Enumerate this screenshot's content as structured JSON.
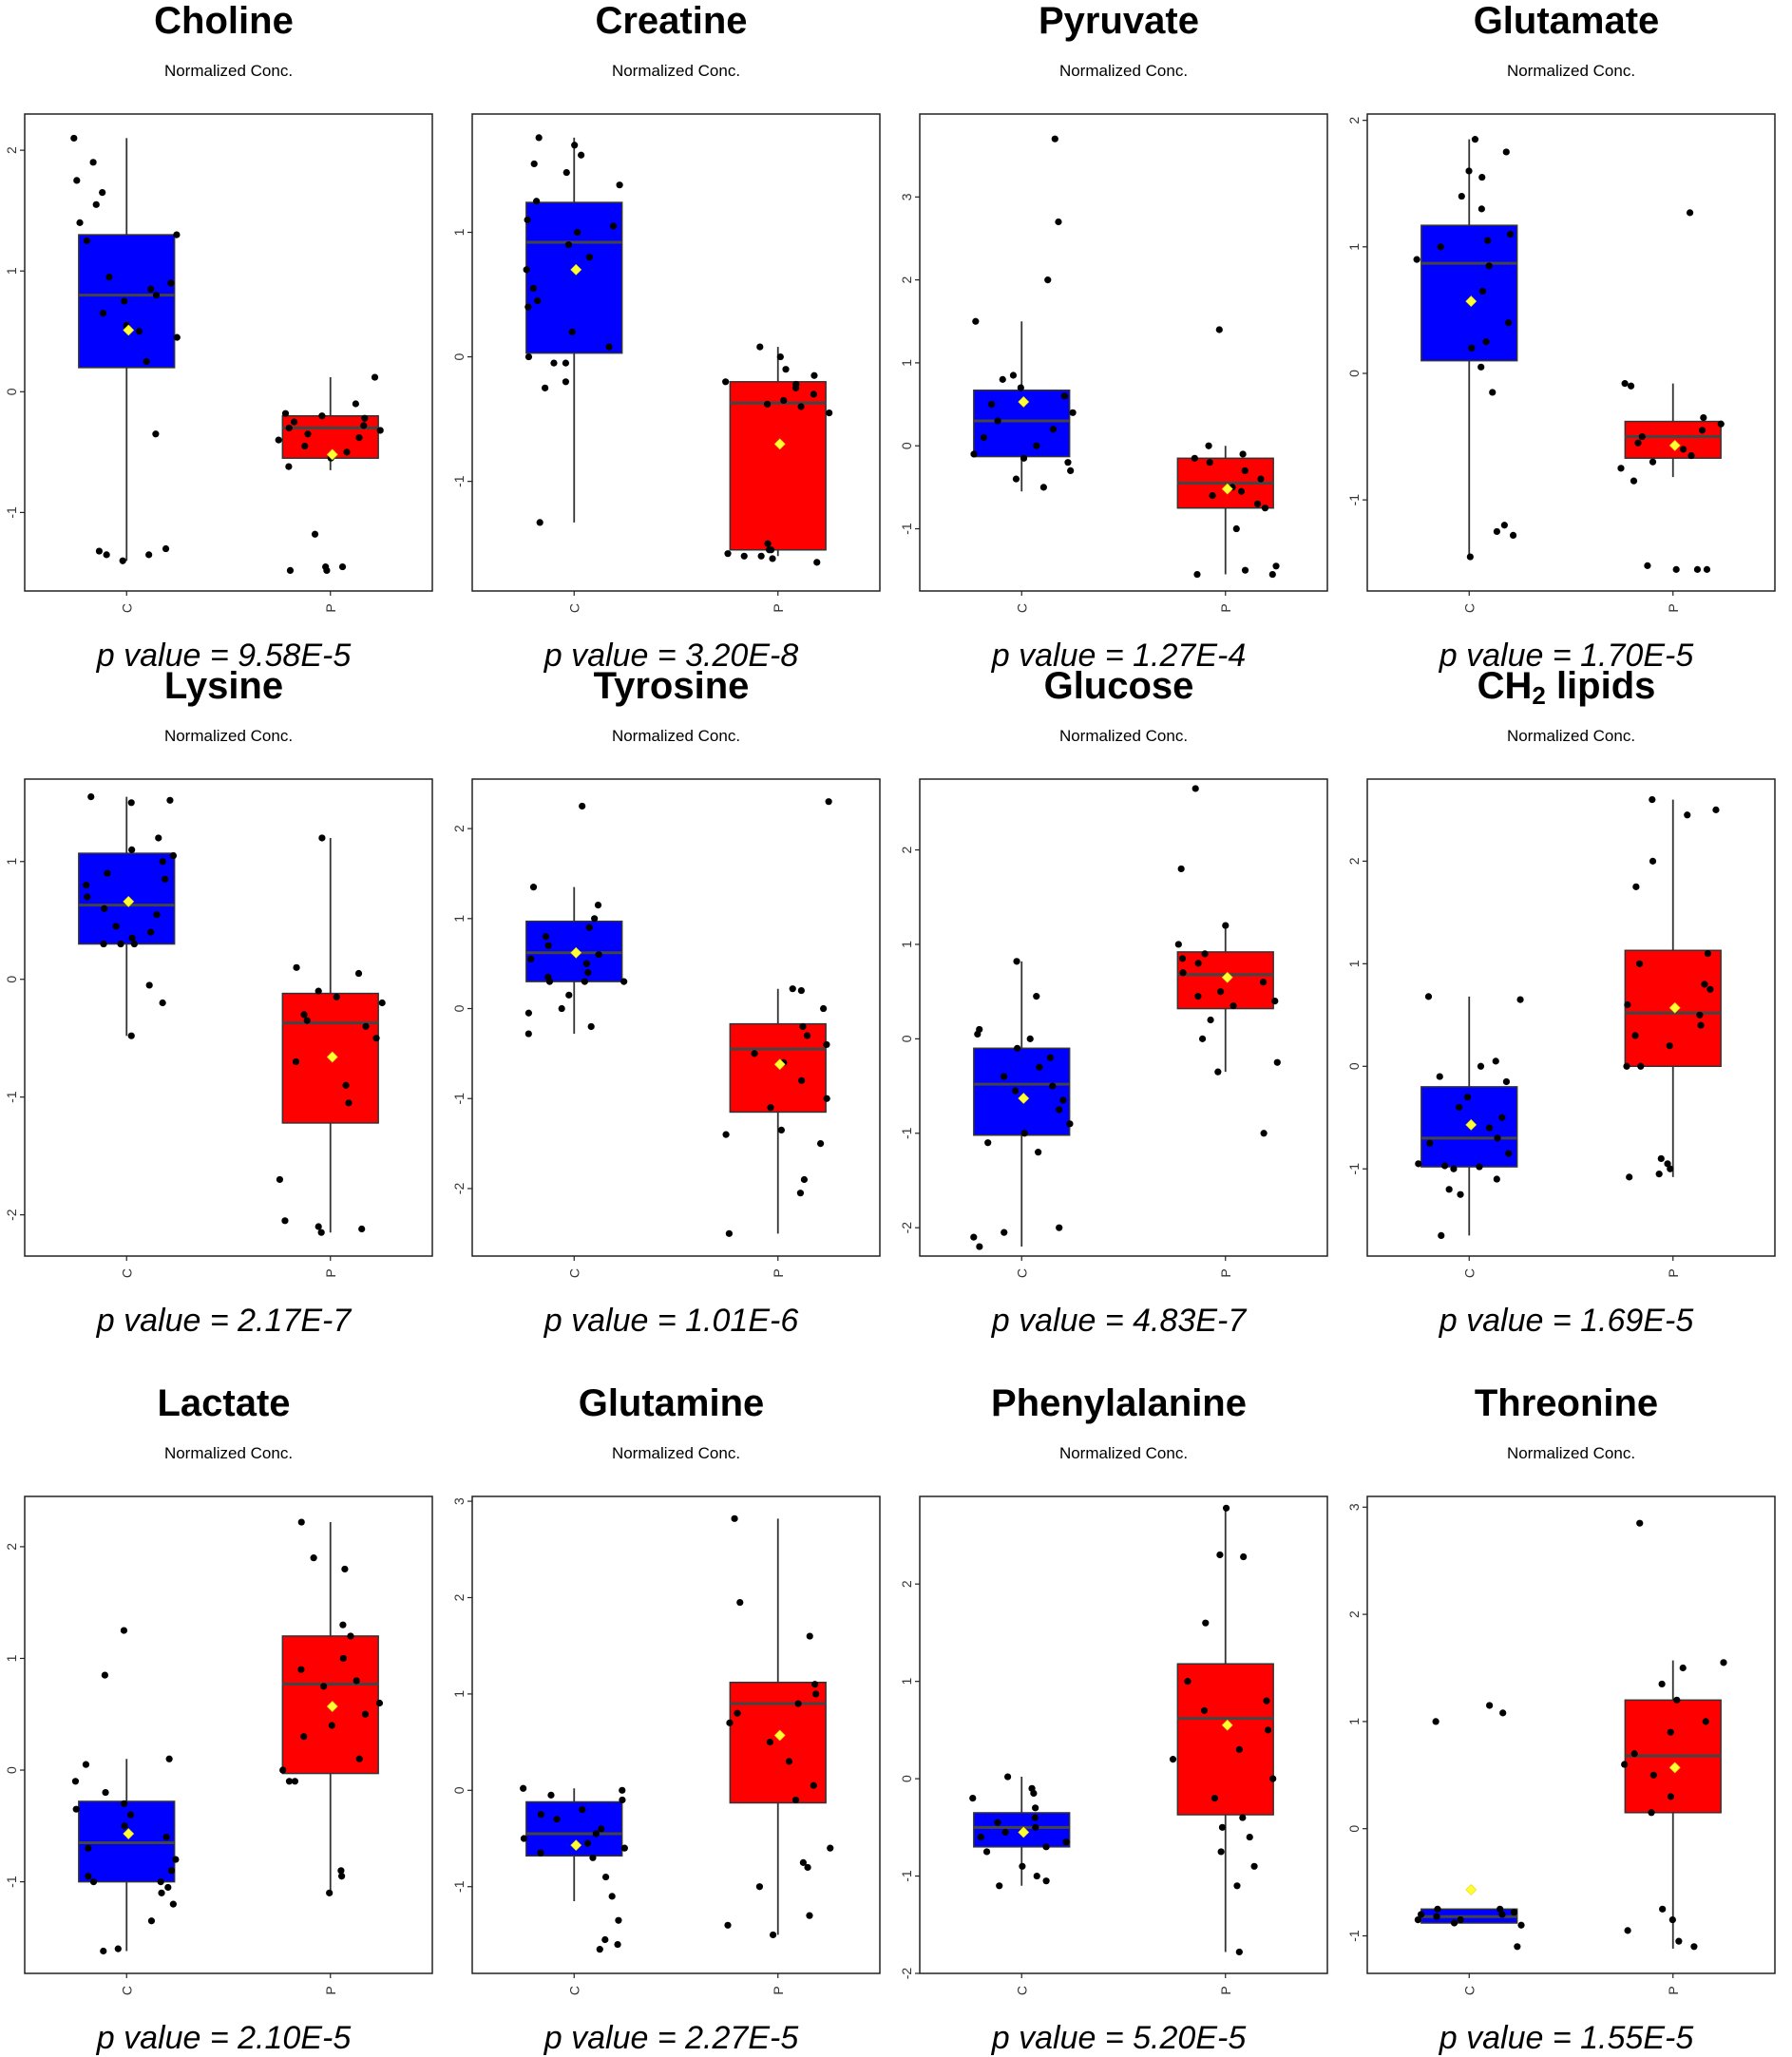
{
  "figure": {
    "plot_subtitle": "Normalized Conc."
  },
  "chart_data": [
    {
      "type": "box",
      "title": "Choline",
      "title_sub": "",
      "subtitle": "Normalized Conc.",
      "p_value_text": "p value = 9.58E-5",
      "categories": [
        "C",
        "P"
      ],
      "colors": [
        "#0000ff",
        "#ff0000"
      ],
      "ylim": [
        -1.65,
        2.3
      ],
      "yticks": [
        -1,
        0,
        1,
        2
      ],
      "boxes": [
        {
          "q1": 0.2,
          "median": 0.8,
          "q3": 1.3,
          "whisker_low": -1.4,
          "whisker_high": 2.1,
          "mean": 0.51
        },
        {
          "q1": -0.55,
          "median": -0.3,
          "q3": -0.2,
          "whisker_low": -0.65,
          "whisker_high": 0.12,
          "mean": -0.52
        }
      ],
      "points": [
        [
          2.1,
          1.9,
          1.75,
          1.65,
          1.55,
          1.4,
          1.3,
          1.25,
          0.95,
          0.9,
          0.85,
          0.8,
          0.75,
          0.65,
          0.55,
          0.5,
          0.45,
          0.25,
          -0.35,
          -1.3,
          -1.32,
          -1.35,
          -1.35,
          -1.4
        ],
        [
          0.12,
          -0.1,
          -0.18,
          -0.2,
          -0.22,
          -0.25,
          -0.28,
          -0.3,
          -0.32,
          -0.35,
          -0.38,
          -0.4,
          -0.45,
          -0.5,
          -0.55,
          -0.62,
          -1.18,
          -1.45,
          -1.45,
          -1.48,
          -1.48
        ]
      ]
    },
    {
      "type": "box",
      "title": "Creatine",
      "title_sub": "",
      "subtitle": "Normalized Conc.",
      "p_value_text": "p value = 3.20E-8",
      "categories": [
        "C",
        "P"
      ],
      "colors": [
        "#0000ff",
        "#ff0000"
      ],
      "ylim": [
        -1.88,
        1.95
      ],
      "yticks": [
        -1,
        0,
        1
      ],
      "boxes": [
        {
          "q1": 0.03,
          "median": 0.92,
          "q3": 1.24,
          "whisker_low": -1.33,
          "whisker_high": 1.76,
          "mean": 0.7
        },
        {
          "q1": -1.55,
          "median": -0.37,
          "q3": -0.2,
          "whisker_low": -1.6,
          "whisker_high": 0.08,
          "mean": -0.7
        }
      ],
      "points": [
        [
          1.76,
          1.7,
          1.62,
          1.55,
          1.48,
          1.38,
          1.25,
          1.1,
          1.05,
          1.0,
          0.9,
          0.8,
          0.7,
          0.55,
          0.45,
          0.4,
          0.2,
          0.08,
          0.0,
          -0.05,
          -0.05,
          -0.2,
          -0.25,
          -1.33
        ],
        [
          0.08,
          0.0,
          -0.1,
          -0.15,
          -0.2,
          -0.22,
          -0.25,
          -0.3,
          -0.35,
          -0.38,
          -0.4,
          -0.45,
          -1.5,
          -1.55,
          -1.55,
          -1.58,
          -1.6,
          -1.6,
          -1.62,
          -1.65
        ]
      ]
    },
    {
      "type": "box",
      "title": "Pyruvate",
      "title_sub": "",
      "subtitle": "Normalized Conc.",
      "p_value_text": "p value = 1.27E-4",
      "categories": [
        "C",
        "P"
      ],
      "colors": [
        "#0000ff",
        "#ff0000"
      ],
      "ylim": [
        -1.75,
        4.0
      ],
      "yticks": [
        -1,
        0,
        1,
        2,
        3
      ],
      "boxes": [
        {
          "q1": -0.13,
          "median": 0.3,
          "q3": 0.67,
          "whisker_low": -0.55,
          "whisker_high": 1.5,
          "mean": 0.53
        },
        {
          "q1": -0.75,
          "median": -0.45,
          "q3": -0.15,
          "whisker_low": -1.55,
          "whisker_high": 0.0,
          "mean": -0.52
        }
      ],
      "points": [
        [
          3.7,
          2.7,
          2.0,
          1.5,
          0.85,
          0.8,
          0.7,
          0.6,
          0.5,
          0.4,
          0.3,
          0.2,
          0.1,
          0.0,
          -0.1,
          -0.15,
          -0.2,
          -0.3,
          -0.4,
          -0.5
        ],
        [
          1.4,
          0.0,
          -0.1,
          -0.15,
          -0.2,
          -0.3,
          -0.4,
          -0.5,
          -0.55,
          -0.6,
          -0.7,
          -0.75,
          -1.0,
          -1.45,
          -1.5,
          -1.55,
          -1.55
        ]
      ]
    },
    {
      "type": "box",
      "title": "Glutamate",
      "title_sub": "",
      "subtitle": "Normalized Conc.",
      "p_value_text": "p value = 1.70E-5",
      "categories": [
        "C",
        "P"
      ],
      "colors": [
        "#0000ff",
        "#ff0000"
      ],
      "ylim": [
        -1.72,
        2.05
      ],
      "yticks": [
        -1,
        0,
        1,
        2
      ],
      "boxes": [
        {
          "q1": 0.1,
          "median": 0.87,
          "q3": 1.17,
          "whisker_low": -1.45,
          "whisker_high": 1.85,
          "mean": 0.57
        },
        {
          "q1": -0.67,
          "median": -0.5,
          "q3": -0.38,
          "whisker_low": -0.82,
          "whisker_high": -0.08,
          "mean": -0.57
        }
      ],
      "points": [
        [
          1.85,
          1.75,
          1.6,
          1.55,
          1.4,
          1.3,
          1.1,
          1.05,
          1.0,
          0.9,
          0.85,
          0.65,
          0.4,
          0.25,
          0.2,
          0.05,
          -0.15,
          -1.2,
          -1.25,
          -1.28,
          -1.45
        ],
        [
          1.27,
          -0.08,
          -0.1,
          -0.35,
          -0.4,
          -0.45,
          -0.5,
          -0.55,
          -0.6,
          -0.65,
          -0.7,
          -0.75,
          -0.85,
          -1.55,
          -1.55,
          -1.55,
          -1.52
        ]
      ]
    },
    {
      "type": "box",
      "title": "Lysine",
      "title_sub": "",
      "subtitle": "Normalized Conc.",
      "p_value_text": "p value = 2.17E-7",
      "categories": [
        "C",
        "P"
      ],
      "colors": [
        "#0000ff",
        "#ff0000"
      ],
      "ylim": [
        -2.35,
        1.7
      ],
      "yticks": [
        -2,
        -1,
        0,
        1
      ],
      "boxes": [
        {
          "q1": 0.3,
          "median": 0.63,
          "q3": 1.07,
          "whisker_low": -0.48,
          "whisker_high": 1.55,
          "mean": 0.66
        },
        {
          "q1": -1.22,
          "median": -0.37,
          "q3": -0.12,
          "whisker_low": -2.15,
          "whisker_high": 1.2,
          "mean": -0.66
        }
      ],
      "points": [
        [
          1.55,
          1.52,
          1.5,
          1.2,
          1.1,
          1.05,
          1.0,
          0.9,
          0.85,
          0.8,
          0.7,
          0.6,
          0.55,
          0.45,
          0.4,
          0.35,
          0.3,
          0.3,
          0.3,
          -0.05,
          -0.2,
          -0.48
        ],
        [
          1.2,
          0.1,
          0.05,
          -0.1,
          -0.15,
          -0.2,
          -0.3,
          -0.35,
          -0.4,
          -0.5,
          -0.7,
          -0.9,
          -1.05,
          -1.7,
          -2.05,
          -2.1,
          -2.12,
          -2.15
        ]
      ]
    },
    {
      "type": "box",
      "title": "Tyrosine",
      "title_sub": "",
      "subtitle": "Normalized Conc.",
      "p_value_text": "p value = 1.01E-6",
      "categories": [
        "C",
        "P"
      ],
      "colors": [
        "#0000ff",
        "#ff0000"
      ],
      "ylim": [
        -2.75,
        2.55
      ],
      "yticks": [
        -2,
        -1,
        0,
        1,
        2
      ],
      "boxes": [
        {
          "q1": 0.3,
          "median": 0.62,
          "q3": 0.97,
          "whisker_low": -0.28,
          "whisker_high": 1.35,
          "mean": 0.62
        },
        {
          "q1": -1.15,
          "median": -0.45,
          "q3": -0.17,
          "whisker_low": -2.5,
          "whisker_high": 0.22,
          "mean": -0.62
        }
      ],
      "points": [
        [
          2.25,
          1.35,
          1.15,
          1.0,
          0.9,
          0.8,
          0.7,
          0.6,
          0.55,
          0.5,
          0.4,
          0.35,
          0.3,
          0.3,
          0.3,
          0.15,
          0.0,
          -0.05,
          -0.2,
          -0.28
        ],
        [
          2.3,
          0.22,
          0.2,
          0.0,
          -0.2,
          -0.3,
          -0.4,
          -0.5,
          -0.6,
          -0.8,
          -1.0,
          -1.1,
          -1.35,
          -1.4,
          -1.5,
          -1.9,
          -2.05,
          -2.5
        ]
      ]
    },
    {
      "type": "box",
      "title": "Glucose",
      "title_sub": "",
      "subtitle": "Normalized Conc.",
      "p_value_text": "p value = 4.83E-7",
      "categories": [
        "C",
        "P"
      ],
      "colors": [
        "#0000ff",
        "#ff0000"
      ],
      "ylim": [
        -2.3,
        2.75
      ],
      "yticks": [
        -2,
        -1,
        0,
        1,
        2
      ],
      "boxes": [
        {
          "q1": -1.02,
          "median": -0.48,
          "q3": -0.1,
          "whisker_low": -2.2,
          "whisker_high": 0.82,
          "mean": -0.63
        },
        {
          "q1": 0.32,
          "median": 0.68,
          "q3": 0.92,
          "whisker_low": -0.35,
          "whisker_high": 1.18,
          "mean": 0.65
        }
      ],
      "points": [
        [
          0.82,
          0.45,
          0.1,
          0.05,
          0.0,
          -0.1,
          -0.2,
          -0.3,
          -0.4,
          -0.5,
          -0.55,
          -0.65,
          -0.75,
          -0.9,
          -1.0,
          -1.1,
          -1.2,
          -2.0,
          -2.05,
          -2.1,
          -2.2
        ],
        [
          2.65,
          1.8,
          1.2,
          1.0,
          0.9,
          0.85,
          0.8,
          0.7,
          0.6,
          0.5,
          0.45,
          0.4,
          0.35,
          0.2,
          0.0,
          -0.25,
          -0.35,
          -1.0
        ]
      ]
    },
    {
      "type": "box",
      "title": "CH",
      "title_sub": "2",
      "title_suffix": " lipids",
      "subtitle": "Normalized Conc.",
      "p_value_text": "p value = 1.69E-5",
      "categories": [
        "C",
        "P"
      ],
      "colors": [
        "#0000ff",
        "#ff0000"
      ],
      "ylim": [
        -1.85,
        2.8
      ],
      "yticks": [
        -1,
        0,
        1,
        2
      ],
      "boxes": [
        {
          "q1": -0.98,
          "median": -0.7,
          "q3": -0.2,
          "whisker_low": -1.65,
          "whisker_high": 0.68,
          "mean": -0.57
        },
        {
          "q1": 0.0,
          "median": 0.52,
          "q3": 1.13,
          "whisker_low": -1.08,
          "whisker_high": 2.6,
          "mean": 0.57
        }
      ],
      "points": [
        [
          0.68,
          0.65,
          0.05,
          0.0,
          -0.1,
          -0.15,
          -0.3,
          -0.4,
          -0.5,
          -0.6,
          -0.7,
          -0.75,
          -0.85,
          -0.95,
          -0.97,
          -0.98,
          -1.0,
          -1.1,
          -1.2,
          -1.25,
          -1.65
        ],
        [
          2.6,
          2.5,
          2.45,
          2.0,
          1.75,
          1.1,
          1.0,
          0.8,
          0.75,
          0.6,
          0.5,
          0.4,
          0.3,
          0.2,
          0.0,
          0.0,
          -0.9,
          -0.95,
          -1.0,
          -1.05,
          -1.08
        ]
      ]
    },
    {
      "type": "box",
      "title": "Lactate",
      "title_sub": "",
      "subtitle": "Normalized Conc.",
      "p_value_text": "p value = 2.10E-5",
      "categories": [
        "C",
        "P"
      ],
      "colors": [
        "#0000ff",
        "#ff0000"
      ],
      "ylim": [
        -1.82,
        2.45
      ],
      "yticks": [
        -1,
        0,
        1,
        2
      ],
      "boxes": [
        {
          "q1": -1.0,
          "median": -0.65,
          "q3": -0.28,
          "whisker_low": -1.62,
          "whisker_high": 0.1,
          "mean": -0.57
        },
        {
          "q1": -0.03,
          "median": 0.77,
          "q3": 1.2,
          "whisker_low": -1.12,
          "whisker_high": 2.22,
          "mean": 0.57
        }
      ],
      "points": [
        [
          1.25,
          0.85,
          0.1,
          0.05,
          -0.1,
          -0.2,
          -0.3,
          -0.35,
          -0.4,
          -0.5,
          -0.6,
          -0.7,
          -0.8,
          -0.9,
          -0.95,
          -1.0,
          -1.0,
          -1.05,
          -1.1,
          -1.2,
          -1.35,
          -1.6,
          -1.62
        ],
        [
          2.22,
          1.9,
          1.8,
          1.3,
          1.2,
          1.0,
          0.9,
          0.8,
          0.75,
          0.6,
          0.5,
          0.4,
          0.3,
          0.1,
          0.0,
          -0.1,
          -0.1,
          -0.9,
          -0.95,
          -1.1
        ]
      ]
    },
    {
      "type": "box",
      "title": "Glutamine",
      "title_sub": "",
      "subtitle": "Normalized Conc.",
      "p_value_text": "p value = 2.27E-5",
      "categories": [
        "C",
        "P"
      ],
      "colors": [
        "#0000ff",
        "#ff0000"
      ],
      "ylim": [
        -1.9,
        3.05
      ],
      "yticks": [
        -1,
        0,
        1,
        2,
        3
      ],
      "boxes": [
        {
          "q1": -0.68,
          "median": -0.45,
          "q3": -0.12,
          "whisker_low": -1.15,
          "whisker_high": 0.02,
          "mean": -0.57
        },
        {
          "q1": -0.13,
          "median": 0.9,
          "q3": 1.12,
          "whisker_low": -1.5,
          "whisker_high": 2.82,
          "mean": 0.57
        }
      ],
      "points": [
        [
          0.02,
          0.0,
          -0.05,
          -0.1,
          -0.2,
          -0.25,
          -0.3,
          -0.4,
          -0.45,
          -0.5,
          -0.55,
          -0.6,
          -0.65,
          -0.7,
          -0.9,
          -1.1,
          -1.35,
          -1.55,
          -1.6,
          -1.65
        ],
        [
          2.82,
          1.95,
          1.6,
          1.1,
          1.0,
          0.9,
          0.8,
          0.7,
          0.5,
          0.3,
          0.05,
          -0.1,
          -0.6,
          -0.75,
          -0.8,
          -1.0,
          -1.3,
          -1.4,
          -1.5
        ]
      ]
    },
    {
      "type": "box",
      "title": "Phenylalanine",
      "title_sub": "",
      "subtitle": "Normalized Conc.",
      "p_value_text": "p value = 5.20E-5",
      "categories": [
        "C",
        "P"
      ],
      "colors": [
        "#0000ff",
        "#ff0000"
      ],
      "ylim": [
        -2.0,
        2.9
      ],
      "yticks": [
        -2,
        -1,
        0,
        1,
        2
      ],
      "boxes": [
        {
          "q1": -0.7,
          "median": -0.5,
          "q3": -0.35,
          "whisker_low": -1.1,
          "whisker_high": 0.02,
          "mean": -0.55
        },
        {
          "q1": -0.37,
          "median": 0.62,
          "q3": 1.18,
          "whisker_low": -1.78,
          "whisker_high": 2.78,
          "mean": 0.55
        }
      ],
      "points": [
        [
          0.02,
          -0.1,
          -0.15,
          -0.2,
          -0.3,
          -0.4,
          -0.45,
          -0.5,
          -0.55,
          -0.6,
          -0.65,
          -0.7,
          -0.75,
          -0.9,
          -1.0,
          -1.05,
          -1.1
        ],
        [
          2.78,
          2.3,
          2.28,
          1.6,
          1.0,
          0.8,
          0.7,
          0.5,
          0.3,
          0.2,
          0.0,
          -0.2,
          -0.4,
          -0.5,
          -0.6,
          -0.75,
          -0.9,
          -1.1,
          -1.78
        ]
      ]
    },
    {
      "type": "box",
      "title": "Threonine",
      "title_sub": "",
      "subtitle": "Normalized Conc.",
      "p_value_text": "p value = 1.55E-5",
      "categories": [
        "C",
        "P"
      ],
      "colors": [
        "#0000ff",
        "#ff0000"
      ],
      "ylim": [
        -1.35,
        3.1
      ],
      "yticks": [
        -1,
        0,
        1,
        2,
        3
      ],
      "boxes": [
        {
          "q1": -0.88,
          "median": -0.82,
          "q3": -0.75,
          "whisker_low": -0.88,
          "whisker_high": -0.75,
          "mean": -0.57
        },
        {
          "q1": 0.15,
          "median": 0.68,
          "q3": 1.2,
          "whisker_low": -1.12,
          "whisker_high": 1.57,
          "mean": 0.57
        }
      ],
      "points": [
        [
          1.15,
          1.08,
          1.0,
          -0.75,
          -0.75,
          -0.78,
          -0.8,
          -0.8,
          -0.82,
          -0.85,
          -0.85,
          -0.88,
          -0.9,
          -1.1
        ],
        [
          2.85,
          1.55,
          1.5,
          1.35,
          1.2,
          1.0,
          0.9,
          0.7,
          0.6,
          0.5,
          0.3,
          0.15,
          -0.75,
          -0.95,
          -1.05,
          -1.1,
          -0.85
        ]
      ]
    }
  ]
}
